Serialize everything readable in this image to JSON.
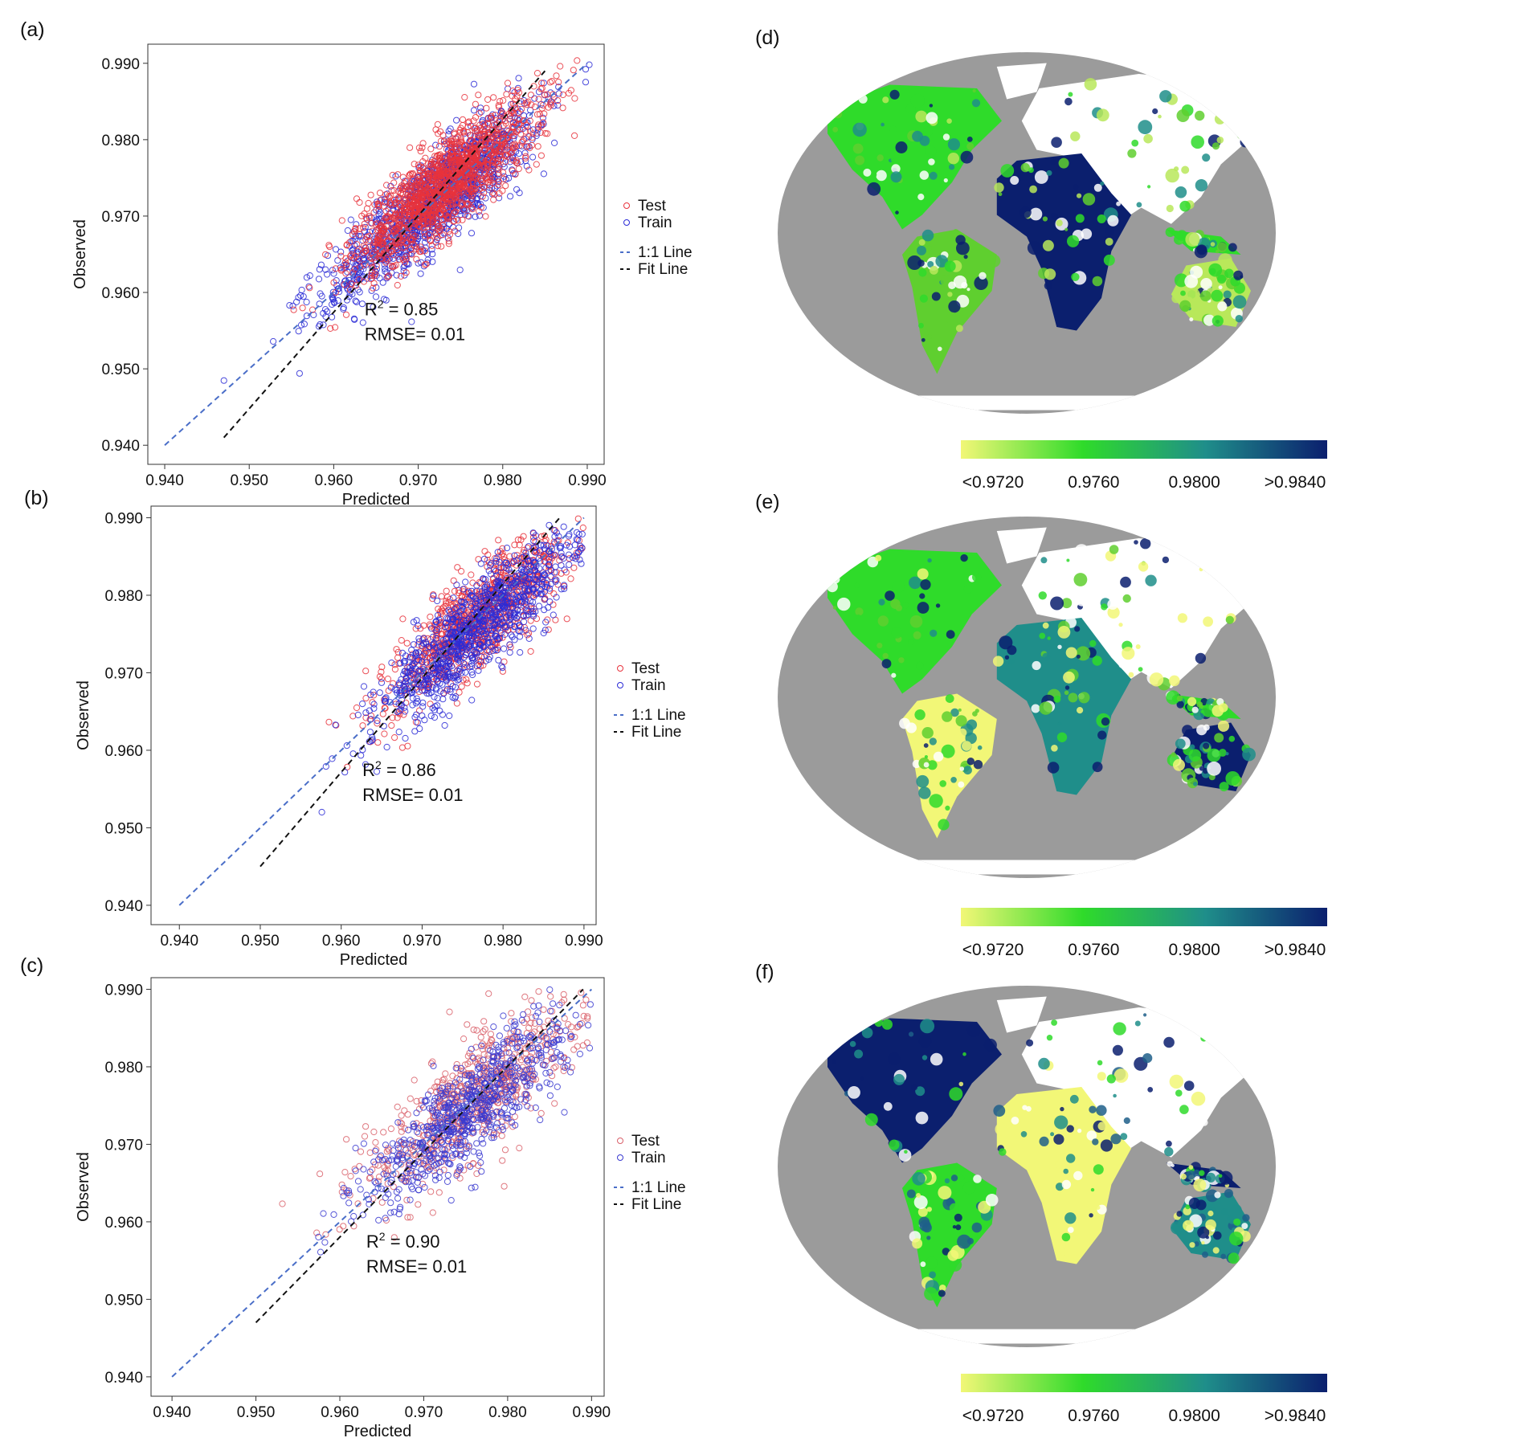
{
  "chart_data": [
    {
      "type": "scatter",
      "panel_label": "(a)",
      "xlabel": "Predicted",
      "ylabel": "Observed",
      "xlim": [
        0.938,
        0.992
      ],
      "ylim": [
        0.9375,
        0.9925
      ],
      "x_ticks": [
        "0.940",
        "0.950",
        "0.960",
        "0.970",
        "0.980",
        "0.990"
      ],
      "y_ticks": [
        "0.940",
        "0.950",
        "0.960",
        "0.970",
        "0.980",
        "0.990"
      ],
      "series": [
        {
          "name": "Test",
          "color": "#e8323c",
          "marker": "open-circle",
          "center": [
            0.973,
            0.974
          ],
          "spread_along": 0.0075,
          "spread_across": 0.0022
        },
        {
          "name": "Train",
          "color": "#2b2bd6",
          "marker": "open-circle",
          "center": [
            0.972,
            0.972
          ],
          "spread_along": 0.0085,
          "spread_across": 0.0022
        }
      ],
      "lines": [
        {
          "name": "1:1 Line",
          "color": "#4a6ec8",
          "dash": "dashed",
          "from": [
            0.94,
            0.94
          ],
          "to": [
            0.99,
            0.99
          ]
        },
        {
          "name": "Fit Line",
          "color": "#111111",
          "dash": "dashed",
          "from": [
            0.947,
            0.941
          ],
          "to": [
            0.985,
            0.989
          ]
        }
      ],
      "annotation": {
        "r2_label": "R",
        "r2_sup": "2",
        "r2_value": " = 0.85",
        "rmse": "RMSE= 0.01"
      },
      "legend_position": "right",
      "grid": false
    },
    {
      "type": "scatter",
      "panel_label": "(b)",
      "xlabel": "Predicted",
      "ylabel": "Observed",
      "xlim": [
        0.9365,
        0.9915
      ],
      "ylim": [
        0.9375,
        0.9915
      ],
      "x_ticks": [
        "0.940",
        "0.950",
        "0.960",
        "0.970",
        "0.980",
        "0.990"
      ],
      "y_ticks": [
        "0.940",
        "0.950",
        "0.960",
        "0.970",
        "0.980",
        "0.990"
      ],
      "series": [
        {
          "name": "Test",
          "color": "#e8323c",
          "marker": "open-circle",
          "center": [
            0.977,
            0.977
          ],
          "spread_along": 0.0075,
          "spread_across": 0.0022
        },
        {
          "name": "Train",
          "color": "#2b2bd6",
          "marker": "open-circle",
          "center": [
            0.977,
            0.976
          ],
          "spread_along": 0.0085,
          "spread_across": 0.0022
        }
      ],
      "lines": [
        {
          "name": "1:1 Line",
          "color": "#4a6ec8",
          "dash": "dashed",
          "from": [
            0.94,
            0.94
          ],
          "to": [
            0.99,
            0.99
          ]
        },
        {
          "name": "Fit Line",
          "color": "#111111",
          "dash": "dashed",
          "from": [
            0.95,
            0.945
          ],
          "to": [
            0.987,
            0.99
          ]
        }
      ],
      "annotation": {
        "r2_label": "R",
        "r2_sup": "2",
        "r2_value": " = 0.86",
        "rmse": "RMSE= 0.01"
      },
      "legend_position": "right",
      "grid": false
    },
    {
      "type": "scatter",
      "panel_label": "(c)",
      "xlabel": "Predicted",
      "ylabel": "Observed",
      "xlim": [
        0.9375,
        0.9915
      ],
      "ylim": [
        0.9375,
        0.9915
      ],
      "x_ticks": [
        "0.940",
        "0.950",
        "0.960",
        "0.970",
        "0.980",
        "0.990"
      ],
      "y_ticks": [
        "0.940",
        "0.950",
        "0.960",
        "0.970",
        "0.980",
        "0.990"
      ],
      "series": [
        {
          "name": "Test",
          "color": "#d9606a",
          "marker": "open-circle",
          "center": [
            0.976,
            0.976
          ],
          "spread_along": 0.008,
          "spread_across": 0.003
        },
        {
          "name": "Train",
          "color": "#3a3ad0",
          "marker": "open-circle",
          "center": [
            0.975,
            0.974
          ],
          "spread_along": 0.0085,
          "spread_across": 0.0024
        }
      ],
      "lines": [
        {
          "name": "1:1 Line",
          "color": "#4a6ec8",
          "dash": "dashed",
          "from": [
            0.94,
            0.94
          ],
          "to": [
            0.99,
            0.99
          ]
        },
        {
          "name": "Fit Line",
          "color": "#111111",
          "dash": "dashed",
          "from": [
            0.95,
            0.947
          ],
          "to": [
            0.989,
            0.99
          ]
        }
      ],
      "annotation": {
        "r2_label": "R",
        "r2_sup": "2",
        "r2_value": " = 0.90",
        "rmse": "RMSE= 0.01"
      },
      "legend_position": "right",
      "grid": false
    },
    {
      "type": "heatmap",
      "panel_label": "(d)",
      "projection": "Robinson world map",
      "colorbar": {
        "colors": [
          "#f2f777",
          "#2fdb2a",
          "#1f8e8a",
          "#0b1f6e"
        ],
        "tick_labels": [
          "<0.9720",
          "0.9760",
          "0.9800",
          ">0.9840"
        ]
      }
    },
    {
      "type": "heatmap",
      "panel_label": "(e)",
      "projection": "Robinson world map",
      "colorbar": {
        "colors": [
          "#f2f777",
          "#2fdb2a",
          "#1f8e8a",
          "#0b1f6e"
        ],
        "tick_labels": [
          "<0.9720",
          "0.9760",
          "0.9800",
          ">0.9840"
        ]
      }
    },
    {
      "type": "heatmap",
      "panel_label": "(f)",
      "projection": "Robinson world map",
      "colorbar": {
        "colors": [
          "#f2f777",
          "#2fdb2a",
          "#1f8e8a",
          "#0b1f6e"
        ],
        "tick_labels": [
          "<0.9720",
          "0.9760",
          "0.9800",
          ">0.9840"
        ]
      }
    }
  ],
  "colors": {
    "ocean": "#9b9b9b",
    "no_data": "#ffffff",
    "ice": "#ffffff"
  }
}
